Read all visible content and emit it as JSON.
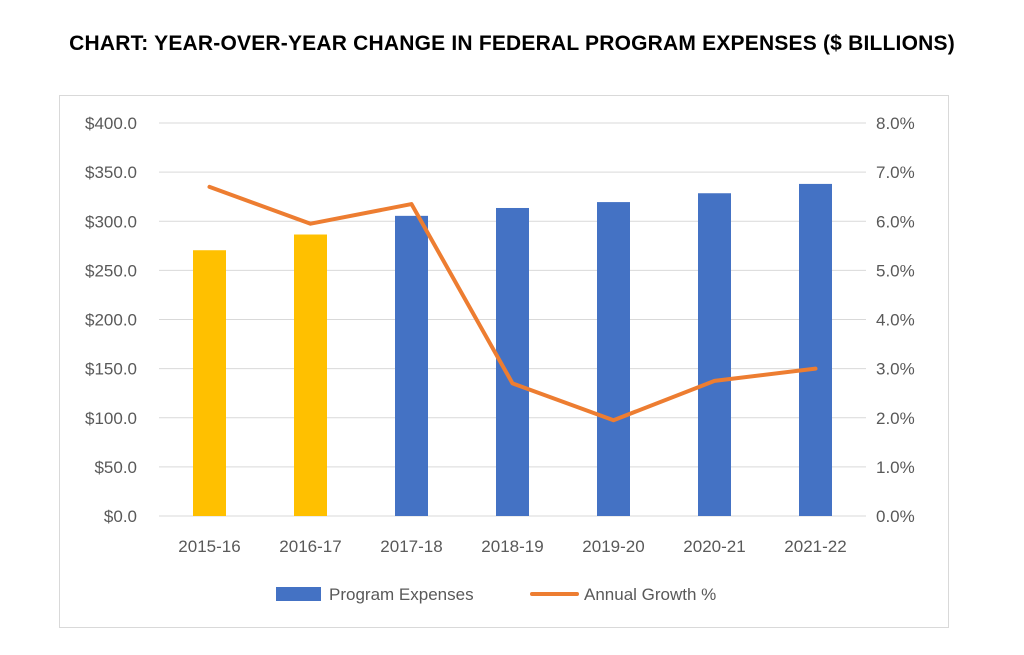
{
  "chart_data": {
    "type": "bar",
    "title": "CHART: YEAR-OVER-YEAR CHANGE IN FEDERAL PROGRAM EXPENSES ($ BILLIONS)",
    "categories": [
      "2015-16",
      "2016-17",
      "2017-18",
      "2018-19",
      "2019-20",
      "2020-21",
      "2021-22"
    ],
    "series": [
      {
        "name": "Program Expenses",
        "type": "bar",
        "axis": "left",
        "color": "#4472C4",
        "highlight_color": "#FFC000",
        "highlighted_categories": [
          "2015-16",
          "2016-17"
        ],
        "values": [
          270.5,
          286.5,
          305.5,
          313.5,
          319.5,
          328.5,
          338.0
        ]
      },
      {
        "name": "Annual Growth %",
        "type": "line",
        "axis": "right",
        "color": "#ED7D31",
        "values": [
          6.7,
          5.95,
          6.35,
          2.7,
          1.95,
          2.75,
          3.0
        ]
      }
    ],
    "y_left": {
      "ylim": [
        0,
        400
      ],
      "ticks": [
        "$0.0",
        "$50.0",
        "$100.0",
        "$150.0",
        "$200.0",
        "$250.0",
        "$300.0",
        "$350.0",
        "$400.0"
      ]
    },
    "y_right": {
      "ylim": [
        0,
        8
      ],
      "ticks": [
        "0.0%",
        "1.0%",
        "2.0%",
        "3.0%",
        "4.0%",
        "5.0%",
        "6.0%",
        "7.0%",
        "8.0%"
      ]
    },
    "grid": true,
    "legend": "bottom"
  }
}
